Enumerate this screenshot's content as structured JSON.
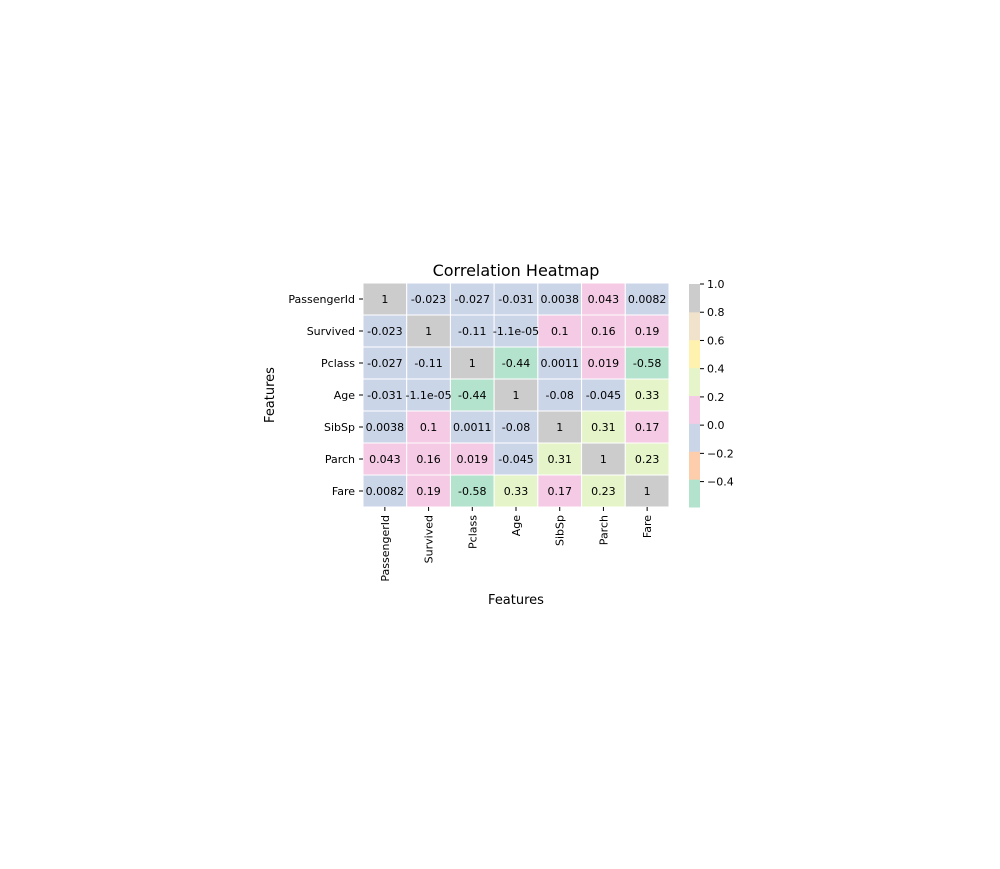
{
  "chart_data": {
    "type": "heatmap",
    "title": "Correlation Heatmap",
    "xlabel": "Features",
    "ylabel": "Features",
    "row_labels": [
      "PassengerId",
      "Survived",
      "Pclass",
      "Age",
      "SibSp",
      "Parch",
      "Fare"
    ],
    "col_labels": [
      "PassengerId",
      "Survived",
      "Pclass",
      "Age",
      "SibSp",
      "Parch",
      "Fare"
    ],
    "values": [
      [
        1,
        -0.023,
        -0.027,
        -0.031,
        0.0038,
        0.043,
        0.0082
      ],
      [
        -0.023,
        1,
        -0.11,
        -1.1e-05,
        0.1,
        0.16,
        0.19
      ],
      [
        -0.027,
        -0.11,
        1,
        -0.44,
        0.0011,
        0.019,
        -0.58
      ],
      [
        -0.031,
        -1.1e-05,
        -0.44,
        1,
        -0.08,
        -0.045,
        0.33
      ],
      [
        0.0038,
        0.1,
        0.0011,
        -0.08,
        1,
        0.31,
        0.17
      ],
      [
        0.043,
        0.16,
        0.019,
        -0.045,
        0.31,
        1,
        0.23
      ],
      [
        0.0082,
        0.19,
        -0.58,
        0.33,
        0.17,
        0.23,
        1
      ]
    ],
    "annotations": [
      [
        "1",
        "-0.023",
        "-0.027",
        "-0.031",
        "0.0038",
        "0.043",
        "0.0082"
      ],
      [
        "-0.023",
        "1",
        "-0.11",
        "-1.1e-05",
        "0.1",
        "0.16",
        "0.19"
      ],
      [
        "-0.027",
        "-0.11",
        "1",
        "-0.44",
        "0.0011",
        "0.019",
        "-0.58"
      ],
      [
        "-0.031",
        "-1.1e-05",
        "-0.44",
        "1",
        "-0.08",
        "-0.045",
        "0.33"
      ],
      [
        "0.0038",
        "0.1",
        "0.0011",
        "-0.08",
        "1",
        "0.31",
        "0.17"
      ],
      [
        "0.043",
        "0.16",
        "0.019",
        "-0.045",
        "0.31",
        "1",
        "0.23"
      ],
      [
        "0.0082",
        "0.19",
        "-0.58",
        "0.33",
        "0.17",
        "0.23",
        "1"
      ]
    ],
    "colormap": "Pastel2",
    "vmin": -0.58,
    "vmax": 1,
    "colorbar": {
      "ticks": [
        1.0,
        0.8,
        0.6,
        0.4,
        0.2,
        0.0,
        -0.2,
        -0.4
      ],
      "tick_labels": [
        "1.0",
        "0.8",
        "0.6",
        "0.4",
        "0.2",
        "0.0",
        "−0.2",
        "−0.4"
      ],
      "colors": [
        "#b3e2cd",
        "#fdcdac",
        "#cbd5e8",
        "#f4cae4",
        "#e6f5c9",
        "#fff2ae",
        "#f1e2cc",
        "#cccccc"
      ]
    }
  }
}
